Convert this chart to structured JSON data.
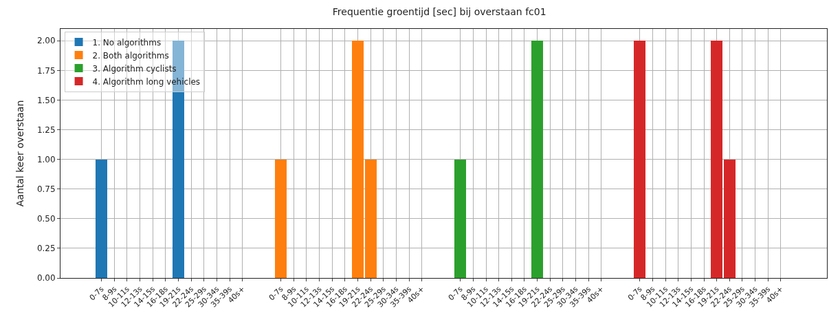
{
  "chart_data": {
    "type": "bar",
    "title": "Frequentie groentijd [sec] bij overstaan fc01",
    "ylabel": "Aantal keer overstaan",
    "categories": [
      "0-7s",
      "8-9s",
      "10-11s",
      "12-13s",
      "14-15s",
      "16-18s",
      "19-21s",
      "22-24s",
      "25-29s",
      "30-34s",
      "35-39s",
      "40s+",
      null,
      null,
      "0-7s",
      "8-9s",
      "10-11s",
      "12-13s",
      "14-15s",
      "16-18s",
      "19-21s",
      "22-24s",
      "25-29s",
      "30-34s",
      "35-39s",
      "40s+",
      null,
      null,
      "0-7s",
      "8-9s",
      "10-11s",
      "12-13s",
      "14-15s",
      "16-18s",
      "19-21s",
      "22-24s",
      "25-29s",
      "30-34s",
      "35-39s",
      "40s+",
      null,
      null,
      "0-7s",
      "8-9s",
      "10-11s",
      "12-13s",
      "14-15s",
      "16-18s",
      "19-21s",
      "22-24s",
      "25-29s",
      "30-34s",
      "35-39s",
      "40s+"
    ],
    "series": [
      {
        "name": "1. No algorithms",
        "color": "#1f77b4",
        "values": [
          1,
          0,
          0,
          0,
          0,
          0,
          2,
          0,
          0,
          0,
          0,
          0,
          null,
          null,
          null,
          null,
          null,
          null,
          null,
          null,
          null,
          null,
          null,
          null,
          null,
          null,
          null,
          null,
          null,
          null,
          null,
          null,
          null,
          null,
          null,
          null,
          null,
          null,
          null,
          null,
          null,
          null,
          null,
          null,
          null,
          null,
          null,
          null,
          null,
          null,
          null,
          null,
          null,
          null
        ]
      },
      {
        "name": "2. Both algorithms",
        "color": "#ff7f0e",
        "values": [
          null,
          null,
          null,
          null,
          null,
          null,
          null,
          null,
          null,
          null,
          null,
          null,
          null,
          null,
          1,
          0,
          0,
          0,
          0,
          0,
          2,
          1,
          0,
          0,
          0,
          0,
          null,
          null,
          null,
          null,
          null,
          null,
          null,
          null,
          null,
          null,
          null,
          null,
          null,
          null,
          null,
          null,
          null,
          null,
          null,
          null,
          null,
          null,
          null,
          null,
          null,
          null,
          null,
          null
        ]
      },
      {
        "name": "3. Algorithm cyclists",
        "color": "#2ca02c",
        "values": [
          null,
          null,
          null,
          null,
          null,
          null,
          null,
          null,
          null,
          null,
          null,
          null,
          null,
          null,
          null,
          null,
          null,
          null,
          null,
          null,
          null,
          null,
          null,
          null,
          null,
          null,
          null,
          null,
          1,
          0,
          0,
          0,
          0,
          0,
          2,
          0,
          0,
          0,
          0,
          0,
          null,
          null,
          null,
          null,
          null,
          null,
          null,
          null,
          null,
          null,
          null,
          null,
          null,
          null
        ]
      },
      {
        "name": "4. Algorithm long vehicles",
        "color": "#d62728",
        "values": [
          null,
          null,
          null,
          null,
          null,
          null,
          null,
          null,
          null,
          null,
          null,
          null,
          null,
          null,
          null,
          null,
          null,
          null,
          null,
          null,
          null,
          null,
          null,
          null,
          null,
          null,
          null,
          null,
          null,
          null,
          null,
          null,
          null,
          null,
          null,
          null,
          null,
          null,
          null,
          null,
          null,
          null,
          2,
          0,
          0,
          0,
          0,
          0,
          2,
          1,
          0,
          0,
          0,
          0
        ]
      }
    ],
    "ylim": [
      0,
      2.1
    ],
    "yticks": [
      {
        "value": 0,
        "label": "0.00"
      },
      {
        "value": 0.25,
        "label": "0.25"
      },
      {
        "value": 0.5,
        "label": "0.50"
      },
      {
        "value": 0.75,
        "label": "0.75"
      },
      {
        "value": 1,
        "label": "1.00"
      },
      {
        "value": 1.25,
        "label": "1.25"
      },
      {
        "value": 1.5,
        "label": "1.50"
      },
      {
        "value": 1.75,
        "label": "1.75"
      },
      {
        "value": 2,
        "label": "2.00"
      }
    ],
    "grid": true,
    "legend": "top left"
  }
}
